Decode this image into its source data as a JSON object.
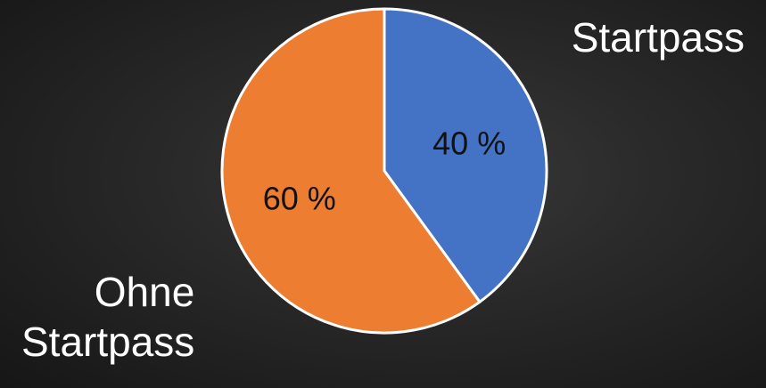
{
  "chart_data": {
    "type": "pie",
    "categories": [
      "Startpass",
      "Ohne Startpass"
    ],
    "values": [
      40,
      60
    ],
    "data_labels": [
      "40 %",
      "60 %"
    ],
    "colors": [
      "#4472C4",
      "#ED7D31"
    ],
    "start_angle_deg": 0,
    "direction": "clockwise",
    "legend": "none",
    "category_labels": {
      "startpass": "Startpass",
      "ohne_line1": "Ohne",
      "ohne_line2": "Startpass"
    }
  }
}
